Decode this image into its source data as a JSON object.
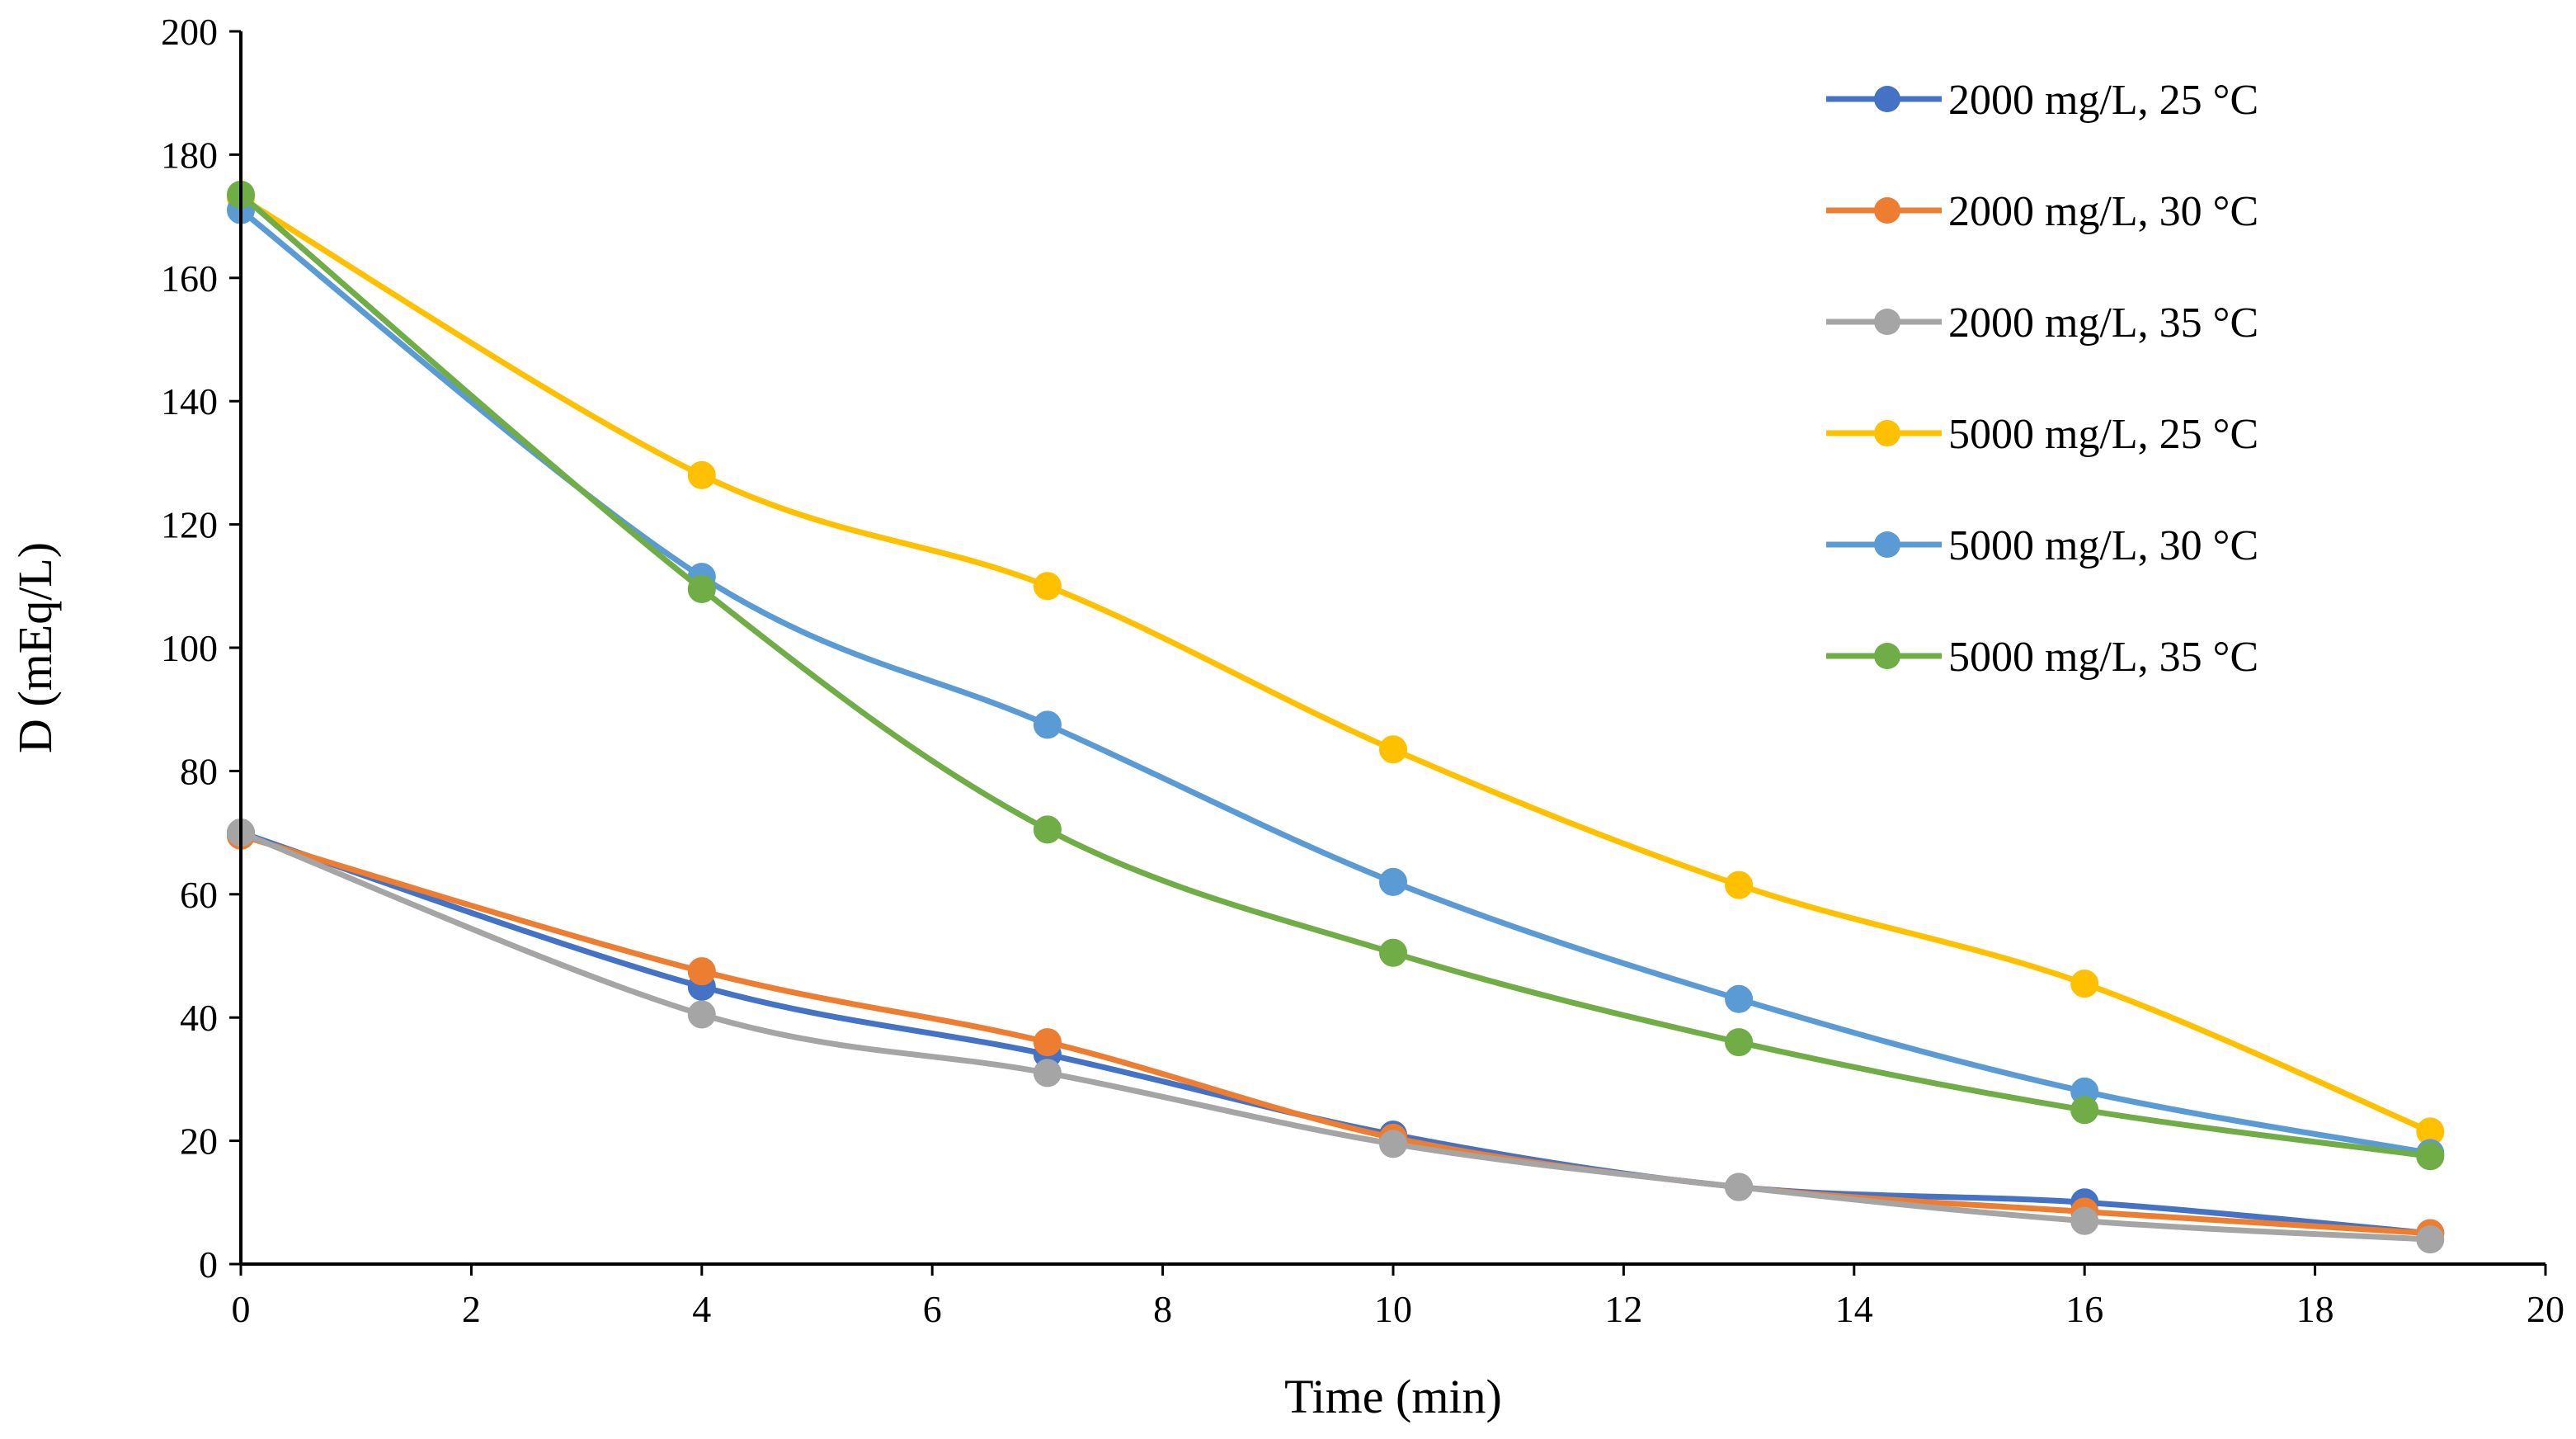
{
  "chart_data": {
    "type": "line",
    "title": "",
    "xlabel": "Time (min)",
    "ylabel": "D (mEq/L)",
    "xlim": [
      0,
      20
    ],
    "ylim": [
      0,
      200
    ],
    "xticks": [
      0,
      2,
      4,
      6,
      8,
      10,
      12,
      14,
      16,
      18,
      20
    ],
    "yticks": [
      0,
      20,
      40,
      60,
      80,
      100,
      120,
      140,
      160,
      180,
      200
    ],
    "grid": false,
    "legend_position": "top-right",
    "x": [
      0,
      4,
      7,
      10,
      13,
      16,
      19
    ],
    "series": [
      {
        "name": "2000 mg/L, 25 °C",
        "color": "#4472C4",
        "values": [
          70,
          45,
          34,
          21,
          12.5,
          10,
          5
        ]
      },
      {
        "name": "2000 mg/L, 30 °C",
        "color": "#ED7D31",
        "values": [
          69.5,
          47.5,
          36,
          20.5,
          12.5,
          8.5,
          5
        ]
      },
      {
        "name": "2000 mg/L, 35 °C",
        "color": "#A5A5A5",
        "values": [
          70,
          40.5,
          31,
          19.5,
          12.5,
          7,
          4
        ]
      },
      {
        "name": "5000 mg/L, 25 °C",
        "color": "#FFC000",
        "values": [
          173,
          128,
          110,
          83.5,
          61.5,
          45.5,
          21.5
        ]
      },
      {
        "name": "5000 mg/L, 30 °C",
        "color": "#5B9BD5",
        "values": [
          171,
          111.5,
          87.5,
          62,
          43,
          28,
          18
        ]
      },
      {
        "name": "5000 mg/L, 35 °C",
        "color": "#70AD47",
        "values": [
          173.5,
          109.5,
          70.5,
          50.5,
          36,
          25,
          17.5
        ]
      }
    ]
  }
}
